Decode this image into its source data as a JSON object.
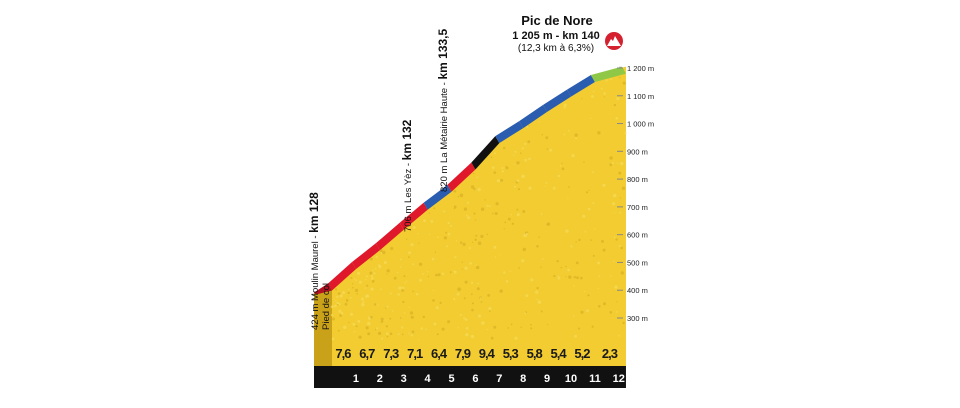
{
  "chart_data": {
    "type": "area",
    "title": "Pic de Nore",
    "summit": {
      "name": "Pic de Nore",
      "line1": "1 205 m - km 140",
      "line2": "(12,3 km à 6,3%)",
      "altitude": 1205,
      "icon": "mountain-summit-icon"
    },
    "y_ticks": [
      {
        "value": 300,
        "label": "300 m"
      },
      {
        "value": 400,
        "label": "400 m"
      },
      {
        "value": 500,
        "label": "500 m"
      },
      {
        "value": 600,
        "label": "600 m"
      },
      {
        "value": 700,
        "label": "700 m"
      },
      {
        "value": 800,
        "label": "800 m"
      },
      {
        "value": 900,
        "label": "900 m"
      },
      {
        "value": 1000,
        "label": "1 000 m"
      },
      {
        "value": 1100,
        "label": "1 100 m"
      },
      {
        "value": 1200,
        "label": "1 200 m"
      }
    ],
    "ylim": [
      300,
      1205
    ],
    "xlim": [
      0,
      12.3
    ],
    "km_labels": [
      "1",
      "2",
      "3",
      "4",
      "5",
      "6",
      "7",
      "8",
      "9",
      "10",
      "11",
      "12"
    ],
    "segments": [
      {
        "km": 1,
        "gradient": "7,6",
        "grade": 7.6,
        "color": "#e0182c"
      },
      {
        "km": 2,
        "gradient": "6,7",
        "grade": 6.7,
        "color": "#e0182c"
      },
      {
        "km": 3,
        "gradient": "7,3",
        "grade": 7.3,
        "color": "#e0182c"
      },
      {
        "km": 4,
        "gradient": "7,1",
        "grade": 7.1,
        "color": "#e0182c"
      },
      {
        "km": 5,
        "gradient": "6,4",
        "grade": 6.4,
        "color": "#2a5db0"
      },
      {
        "km": 6,
        "gradient": "7,9",
        "grade": 7.9,
        "color": "#e0182c"
      },
      {
        "km": 7,
        "gradient": "9,4",
        "grade": 9.4,
        "color": "#111111"
      },
      {
        "km": 8,
        "gradient": "5,3",
        "grade": 5.3,
        "color": "#2a5db0"
      },
      {
        "km": 9,
        "gradient": "5,8",
        "grade": 5.8,
        "color": "#2a5db0"
      },
      {
        "km": 10,
        "gradient": "5,4",
        "grade": 5.4,
        "color": "#2a5db0"
      },
      {
        "km": 11,
        "gradient": "5,2",
        "grade": 5.2,
        "color": "#2a5db0"
      },
      {
        "km": 12,
        "gradient": "2,3",
        "grade": 2.3,
        "color": "#8fc846"
      }
    ],
    "waypoints": [
      {
        "main": "424 m Moulin Maurel",
        "sub": "Pied de col",
        "km": "km 128",
        "dist": 0,
        "altitude": 424
      },
      {
        "main": "706 m Les Yèz",
        "sub": "",
        "km": "km 132",
        "dist": 4,
        "altitude": 706
      },
      {
        "main": "820 m La Métairie Haute",
        "sub": "",
        "km": "km 133,5",
        "dist": 5.5,
        "altitude": 820
      }
    ],
    "colors": {
      "fill": "#f2cc30",
      "fill_dark": "#c9a21a",
      "base_bar": "#111111",
      "axis": "#888888"
    }
  }
}
